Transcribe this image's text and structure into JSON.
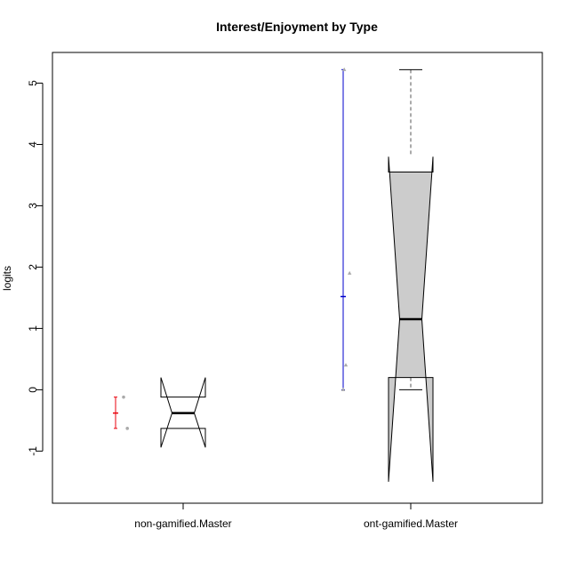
{
  "chart_data": {
    "type": "boxplot",
    "title": "Interest/Enjoyment by Type",
    "xlabel": "",
    "ylabel": "logits",
    "ylim": [
      -1.85,
      5.5
    ],
    "yticks": [
      -1,
      0,
      1,
      2,
      3,
      4,
      5
    ],
    "categories": [
      "non-gamified.Master",
      "ont-gamified.Master"
    ],
    "boxes": [
      {
        "name": "non-gamified.Master",
        "fill": "#ffffff",
        "q1": -0.63,
        "median": -0.38,
        "q3": -0.12,
        "whisker_low": -0.63,
        "whisker_high": -0.12,
        "notch_low": -0.94,
        "notch_high": 0.2
      },
      {
        "name": "ont-gamified.Master",
        "fill": "#cccccc",
        "q1": 0.2,
        "median": 1.15,
        "q3": 3.55,
        "whisker_low": 0.0,
        "whisker_high": 5.22,
        "notch_low": -1.5,
        "notch_high": 3.8
      }
    ],
    "mean_intervals": [
      {
        "name": "non-gamified.Master",
        "color": "#e8000b",
        "mean": -0.38,
        "low": -0.63,
        "high": -0.12
      },
      {
        "name": "ont-gamified.Master",
        "color": "#0000cc",
        "mean": 1.52,
        "low": 0.0,
        "high": 5.22
      }
    ],
    "points": [
      {
        "group": 0,
        "jitter": 0.15,
        "y": -0.12
      },
      {
        "group": 0,
        "jitter": 0.22,
        "y": -0.63
      },
      {
        "group": 1,
        "jitter": 0.0,
        "y": 0.0
      },
      {
        "group": 1,
        "jitter": 0.05,
        "y": 0.4
      },
      {
        "group": 1,
        "jitter": 0.12,
        "y": 1.9
      },
      {
        "group": 1,
        "jitter": 0.02,
        "y": 5.22
      }
    ],
    "point_color": "#aaaaaa"
  }
}
